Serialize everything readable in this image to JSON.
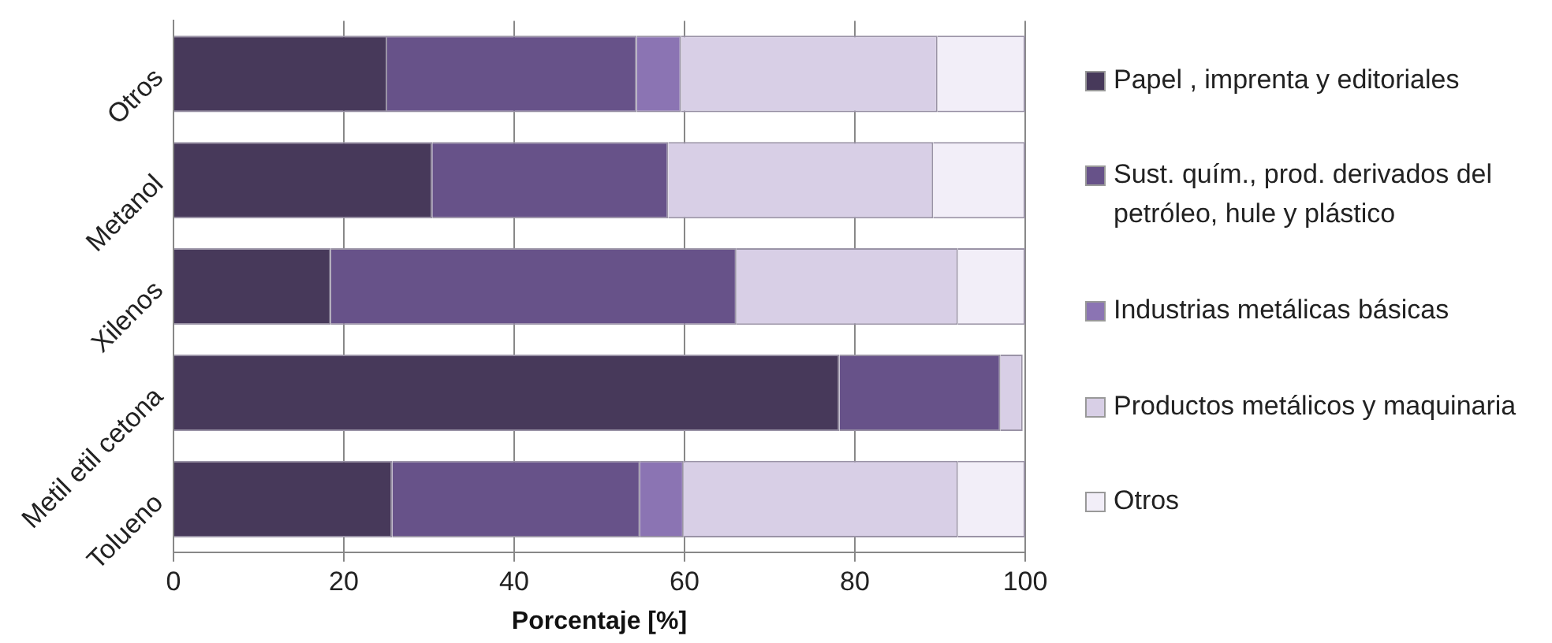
{
  "chart_data": {
    "type": "bar",
    "orientation": "horizontal",
    "stacked": true,
    "xlabel": "Porcentaje [%]",
    "categories": [
      "Otros",
      "Metanol",
      "Xilenos",
      "Metil etil cetona",
      "Tolueno"
    ],
    "series": [
      {
        "name": "Papel , imprenta y editoriales",
        "color": "#47395a",
        "values": [
          25.1,
          30.4,
          18.5,
          78.2,
          25.7
        ]
      },
      {
        "name": "Sust. quím., prod. derivados del petróleo, hule y plástico",
        "color": "#675289",
        "values": [
          29.3,
          27.7,
          47.6,
          18.9,
          29.1
        ]
      },
      {
        "name": "Industrias metálicas básicas",
        "color": "#8b74b3",
        "values": [
          5.2,
          0,
          0,
          0,
          5.1
        ]
      },
      {
        "name": "Productos metálicos y maquinaria",
        "color": "#d8cfe6",
        "values": [
          30.1,
          31.1,
          26,
          2.6,
          32.2
        ]
      },
      {
        "name": "Otros",
        "color": "#f2eef8",
        "values": [
          10.3,
          10.8,
          7.9,
          null,
          7.9
        ]
      }
    ],
    "xlim": [
      0,
      100
    ],
    "xticks": [
      0,
      20,
      40,
      60,
      80,
      100
    ],
    "grid": "x",
    "legend": "right"
  }
}
